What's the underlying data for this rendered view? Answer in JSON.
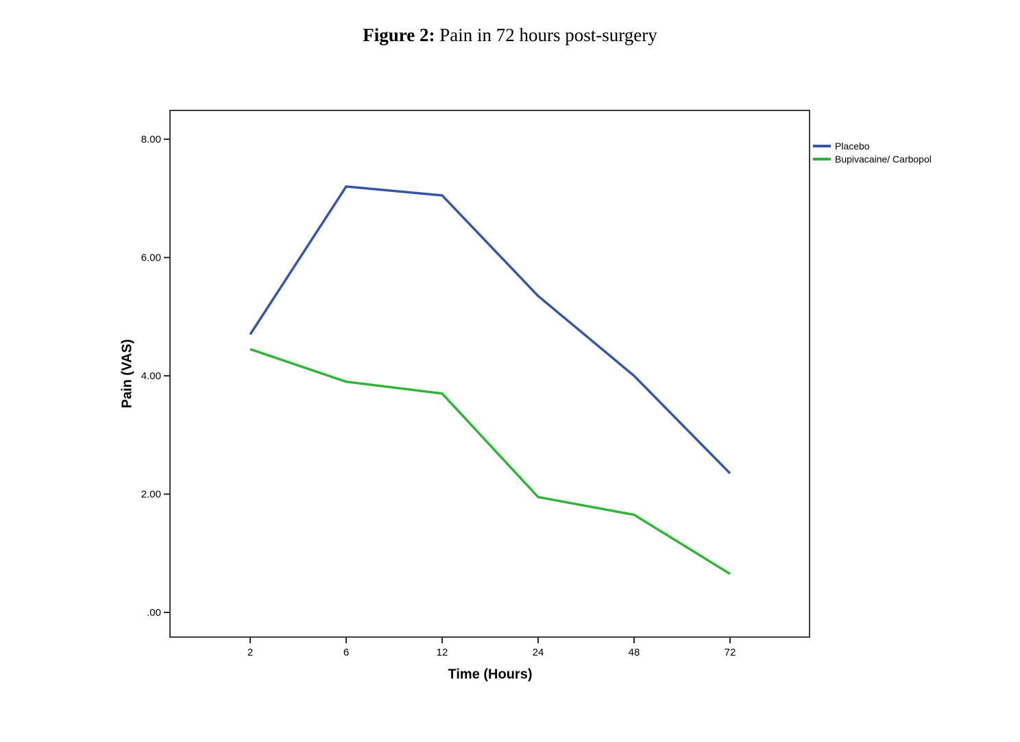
{
  "figure_title": {
    "label": "Figure 2:",
    "text": " Pain in 72 hours post-surgery"
  },
  "chart_data": {
    "type": "line",
    "categories": [
      "2",
      "6",
      "12",
      "24",
      "48",
      "72"
    ],
    "series": [
      {
        "name": "Placebo",
        "color": "#3556a8",
        "values": [
          4.7,
          7.2,
          7.05,
          5.35,
          4.0,
          2.35
        ]
      },
      {
        "name": "Bupivacaine/ Carbopol",
        "color": "#2eb538",
        "values": [
          4.45,
          3.9,
          3.7,
          1.95,
          1.65,
          0.65
        ]
      }
    ],
    "title": "Figure 2: Pain in 72 hours post-surgery",
    "xlabel": "Time (Hours)",
    "ylabel": "Pain (VAS)",
    "y_ticks": [
      "8.00",
      "6.00",
      "4.00",
      "2.00",
      ".00"
    ],
    "y_tick_values": [
      8,
      6,
      4,
      2,
      0
    ],
    "ylim": [
      -0.42,
      8.49
    ],
    "x_axis_type": "categorical-even-spacing",
    "grid": false,
    "legend_position": "top-right-outside",
    "frame_color": "#3c3c3c"
  }
}
